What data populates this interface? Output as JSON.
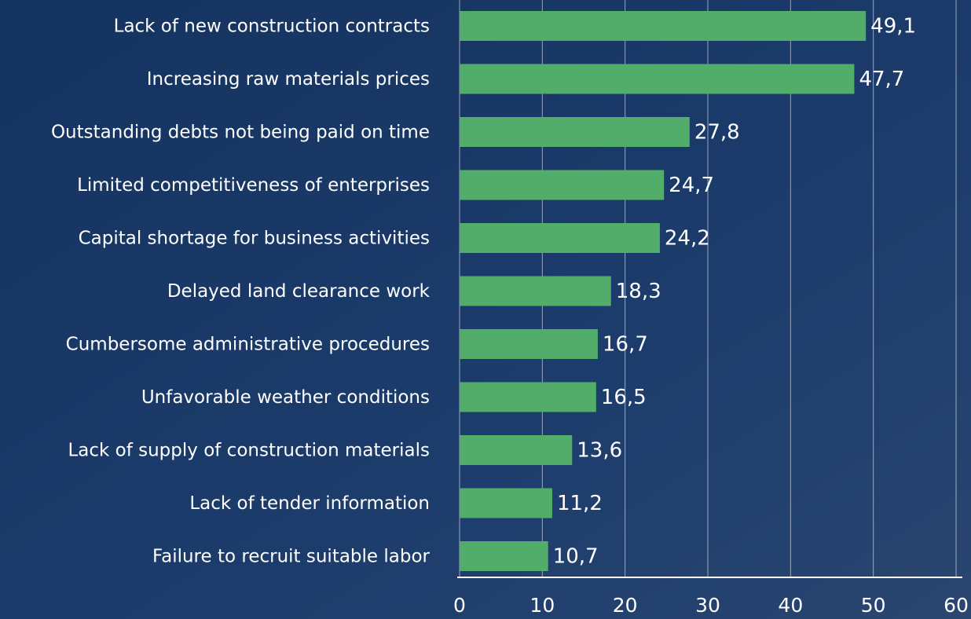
{
  "chart_data": {
    "type": "bar",
    "categories": [
      "Lack of new construction contracts",
      "Increasing raw materials prices",
      "Outstanding debts not being paid on time",
      "Limited competitiveness of enterprises",
      "Capital shortage for business activities",
      "Delayed land clearance work",
      "Cumbersome administrative procedures",
      "Unfavorable weather conditions",
      "Lack of supply of construction materials",
      "Lack of tender information",
      "Failure to recruit suitable labor"
    ],
    "values": [
      49.1,
      47.7,
      27.8,
      24.7,
      24.2,
      18.3,
      16.7,
      16.5,
      13.6,
      11.2,
      10.7
    ],
    "value_labels": [
      "49,1",
      "47,7",
      "27,8",
      "24,7",
      "24,2",
      "18,3",
      "16,7",
      "16,5",
      "13,6",
      "11,2",
      "10,7"
    ],
    "color": "#52ad6b",
    "xlim": [
      0,
      60
    ],
    "xticks": [
      0,
      10,
      20,
      30,
      40,
      50,
      60
    ],
    "grid": true
  }
}
